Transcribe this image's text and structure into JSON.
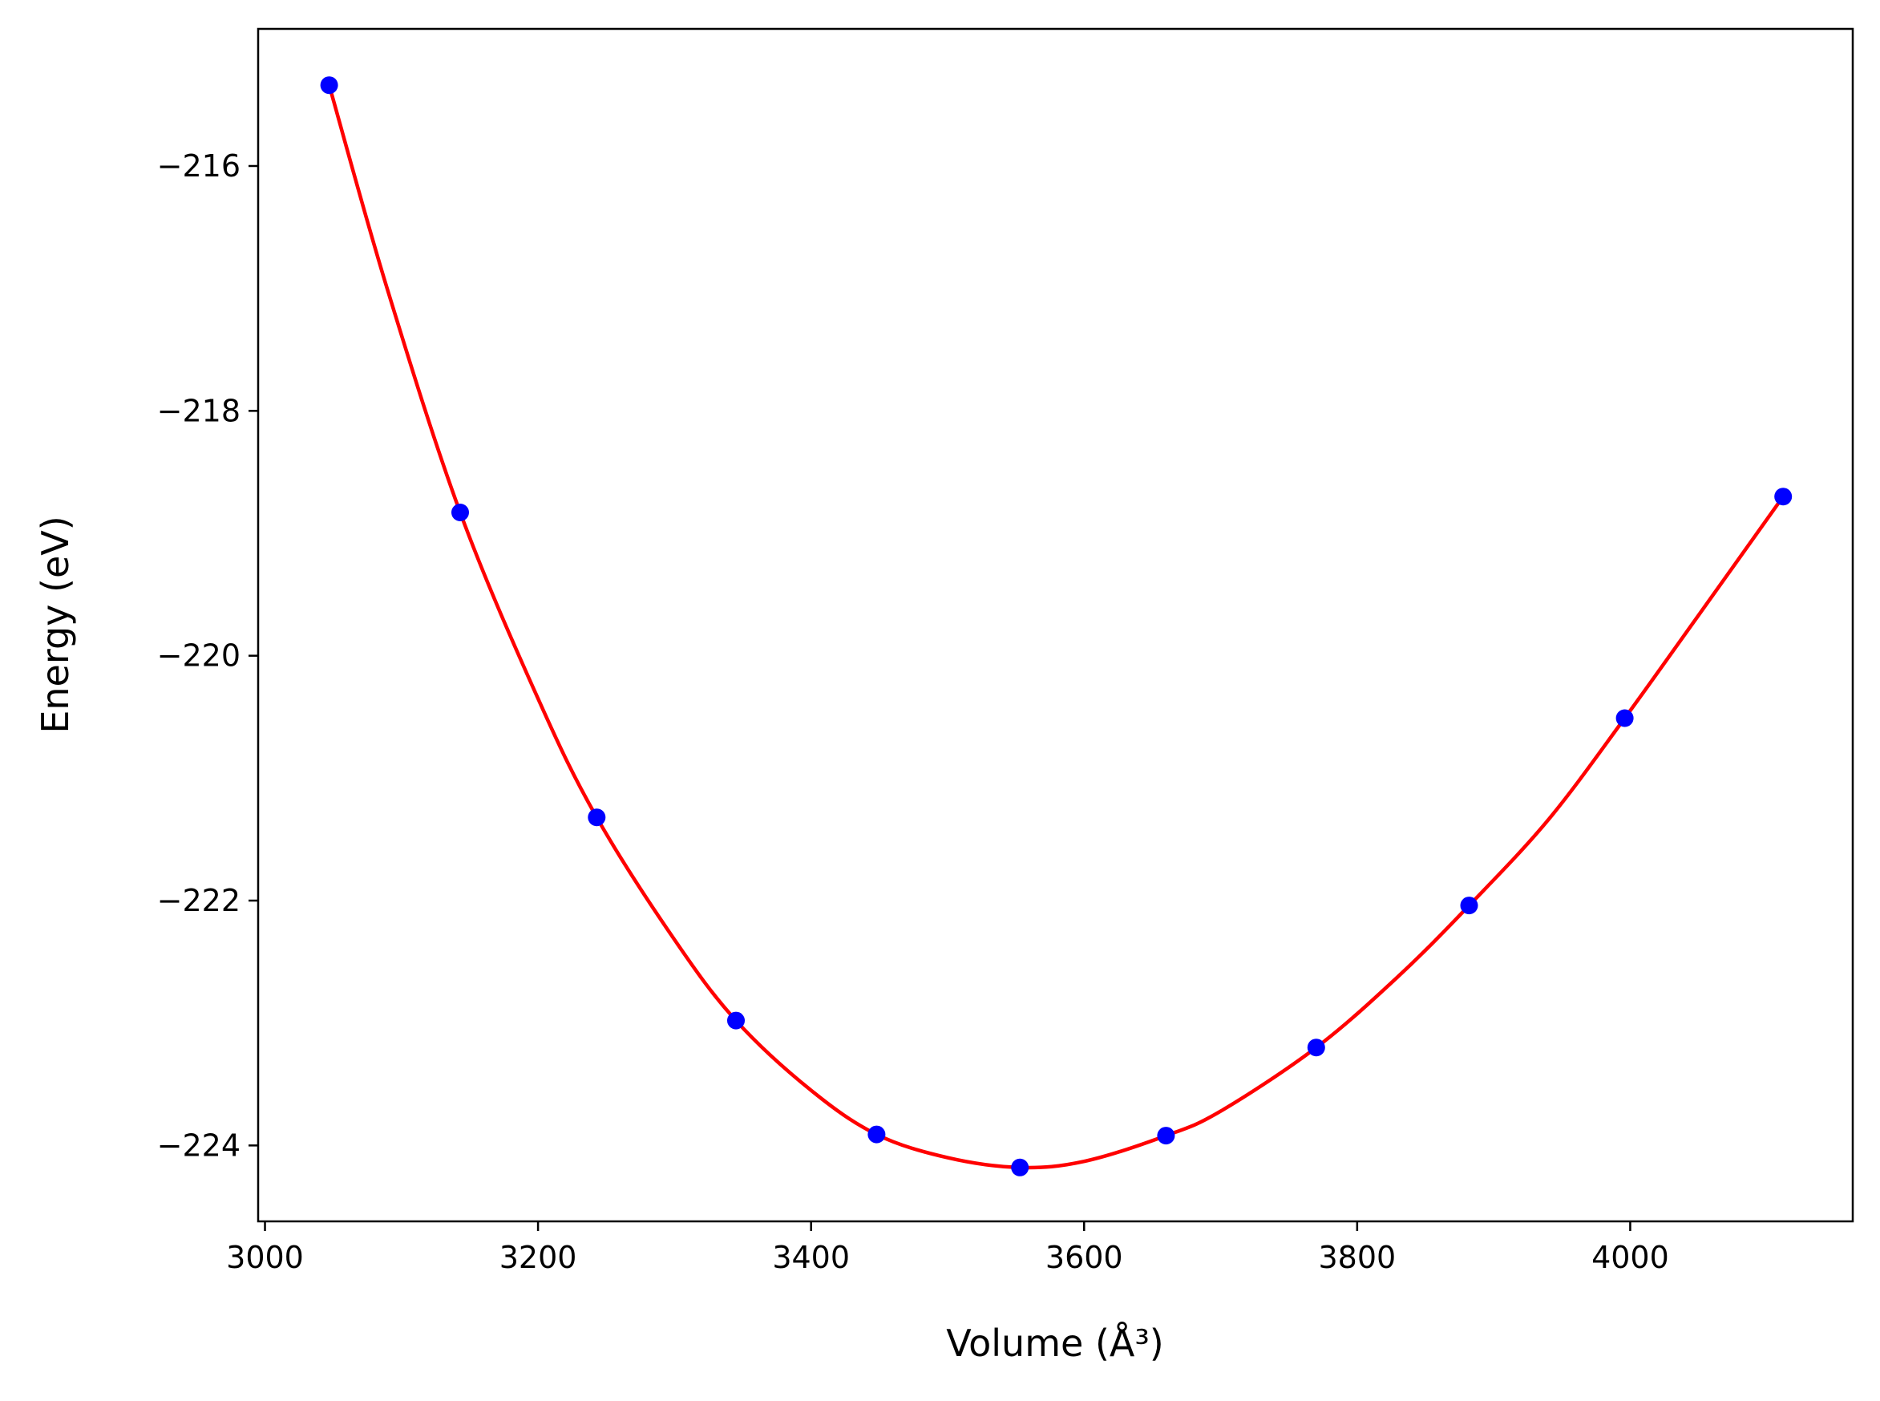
{
  "chart_data": {
    "type": "scatter",
    "title": "",
    "xlabel": "Volume (Å³)",
    "ylabel": "Energy (eV)",
    "xlim": [
      2995,
      4163
    ],
    "ylim": [
      -224.62,
      -214.88
    ],
    "xticks": [
      3000,
      3200,
      3400,
      3600,
      3800,
      4000
    ],
    "yticks": [
      -216,
      -218,
      -220,
      -222,
      -224
    ],
    "xtick_labels": [
      "3000",
      "3200",
      "3400",
      "3600",
      "3800",
      "4000"
    ],
    "ytick_labels": [
      "−216",
      "−218",
      "−220",
      "−222",
      "−224"
    ],
    "grid": false,
    "series": [
      {
        "kind": "points",
        "color": "#0000ff",
        "x": [
          3047,
          3143,
          3243,
          3345,
          3448,
          3553,
          3660,
          3770,
          3882,
          3996,
          4112
        ],
        "y": [
          -215.34,
          -218.83,
          -221.32,
          -222.98,
          -223.91,
          -224.18,
          -223.92,
          -223.2,
          -222.04,
          -220.51,
          -218.7
        ]
      },
      {
        "kind": "fit-line",
        "color": "#ff0000",
        "x": [
          3047,
          3090,
          3143,
          3200,
          3243,
          3300,
          3345,
          3400,
          3448,
          3500,
          3553,
          3600,
          3660,
          3700,
          3770,
          3830,
          3882,
          3940,
          3996,
          4050,
          4112
        ],
        "y": [
          -215.34,
          -217.02,
          -218.83,
          -220.35,
          -221.32,
          -222.32,
          -222.98,
          -223.55,
          -223.91,
          -224.1,
          -224.18,
          -224.13,
          -223.92,
          -223.72,
          -223.2,
          -222.62,
          -222.04,
          -221.34,
          -220.51,
          -219.67,
          -218.7
        ]
      }
    ]
  }
}
